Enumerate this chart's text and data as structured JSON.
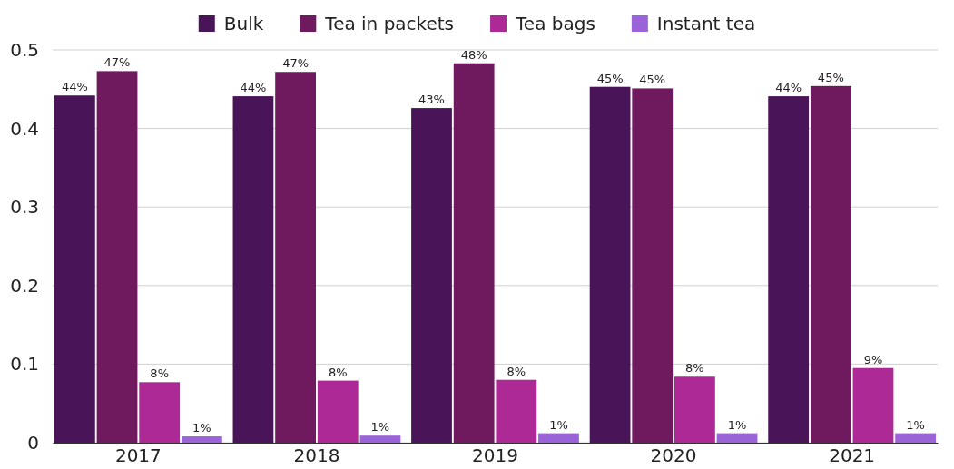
{
  "chart_data": {
    "type": "bar",
    "categories": [
      "2017",
      "2018",
      "2019",
      "2020",
      "2021"
    ],
    "series": [
      {
        "name": "Bulk",
        "color": "#4a1558",
        "values": [
          0.442,
          0.441,
          0.426,
          0.453,
          0.441
        ],
        "value_labels": [
          "44%",
          "44%",
          "43%",
          "45%",
          "44%"
        ]
      },
      {
        "name": "Tea in packets",
        "color": "#6f1a5e",
        "values": [
          0.473,
          0.472,
          0.483,
          0.451,
          0.454
        ],
        "value_labels": [
          "47%",
          "47%",
          "48%",
          "45%",
          "45%"
        ]
      },
      {
        "name": "Tea bags",
        "color": "#ad2a96",
        "values": [
          0.077,
          0.079,
          0.08,
          0.084,
          0.095
        ],
        "value_labels": [
          "8%",
          "8%",
          "8%",
          "8%",
          "9%"
        ]
      },
      {
        "name": "Instant tea",
        "color": "#9b63d8",
        "values": [
          0.008,
          0.009,
          0.012,
          0.012,
          0.012
        ],
        "value_labels": [
          "1%",
          "1%",
          "1%",
          "1%",
          "1%"
        ]
      }
    ],
    "ylim": [
      0,
      0.5
    ],
    "yticks": [
      0,
      0.1,
      0.2,
      0.3,
      0.4,
      0.5
    ],
    "grid": "y",
    "legend": "top"
  }
}
